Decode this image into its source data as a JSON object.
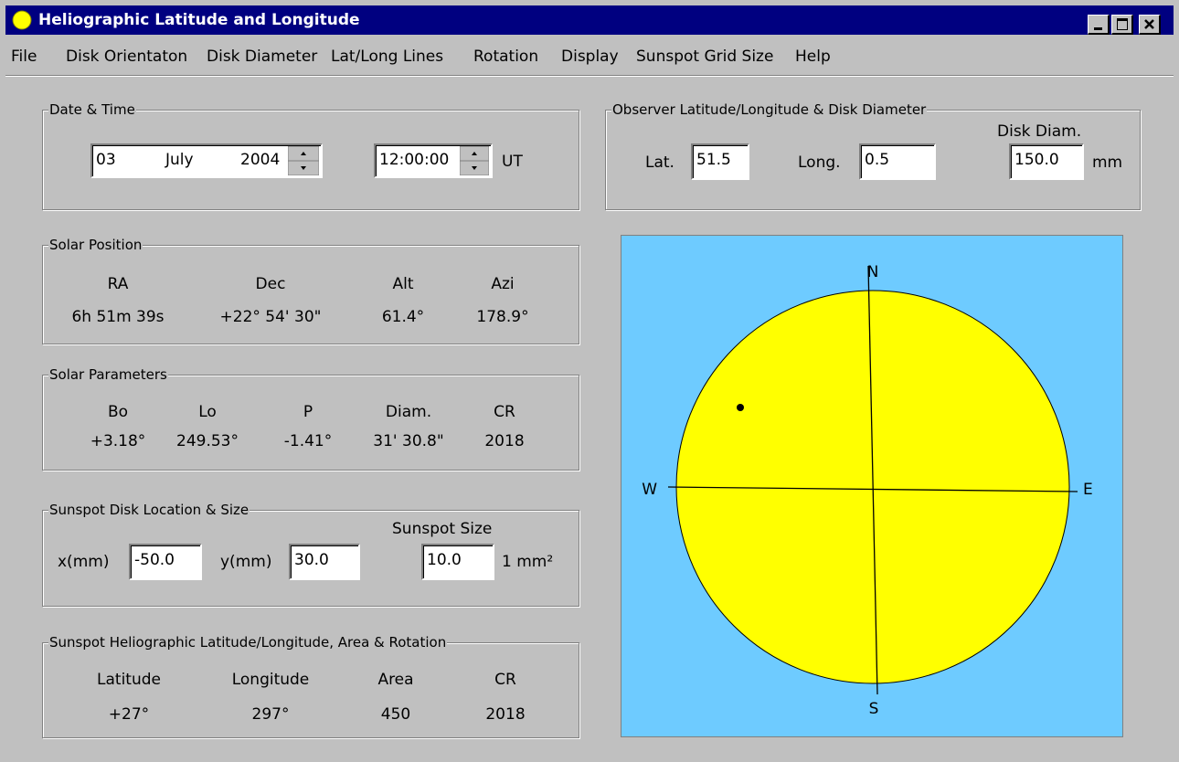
{
  "window": {
    "title": "Heliographic Latitude and Longitude"
  },
  "menu": [
    "File",
    "Disk Orientaton",
    "Disk Diameter",
    "Lat/Long Lines",
    "Rotation",
    "Display",
    "Sunspot Grid Size",
    "Help"
  ],
  "date_time": {
    "label": "Date & Time",
    "day": "03",
    "month": "July",
    "year": "2004",
    "time": "12:00:00",
    "time_unit": "UT"
  },
  "observer": {
    "label": "Observer Latitude/Longitude & Disk Diameter",
    "lat_label": "Lat.",
    "lat": "51.5",
    "long_label": "Long.",
    "long": "0.5",
    "diam_label": "Disk Diam.",
    "diam": "150.0",
    "diam_unit": "mm"
  },
  "solar_position": {
    "label": "Solar Position",
    "headers": [
      "RA",
      "Dec",
      "Alt",
      "Azi"
    ],
    "values": [
      "6h 51m 39s",
      "+22° 54' 30\"",
      "61.4°",
      "178.9°"
    ]
  },
  "solar_parameters": {
    "label": "Solar Parameters",
    "headers": [
      "Bo",
      "Lo",
      "P",
      "Diam.",
      "CR"
    ],
    "values": [
      "+3.18°",
      "249.53°",
      "-1.41°",
      "31' 30.8\"",
      "2018"
    ]
  },
  "sunspot_location": {
    "label": "Sunspot Disk Location & Size",
    "x_label": "x(mm)",
    "x": "-50.0",
    "y_label": "y(mm)",
    "y": "30.0",
    "size_label": "Sunspot Size",
    "size": "10.0",
    "size_unit": "1 mm²"
  },
  "sunspot_helio": {
    "label": "Sunspot Heliographic Latitude/Longitude, Area & Rotation",
    "headers": [
      "Latitude",
      "Longitude",
      "Area",
      "CR"
    ],
    "values": [
      "+27°",
      "297°",
      "450",
      "2018"
    ]
  },
  "disk": {
    "north": "N",
    "south": "S",
    "west": "W",
    "east": "E"
  }
}
